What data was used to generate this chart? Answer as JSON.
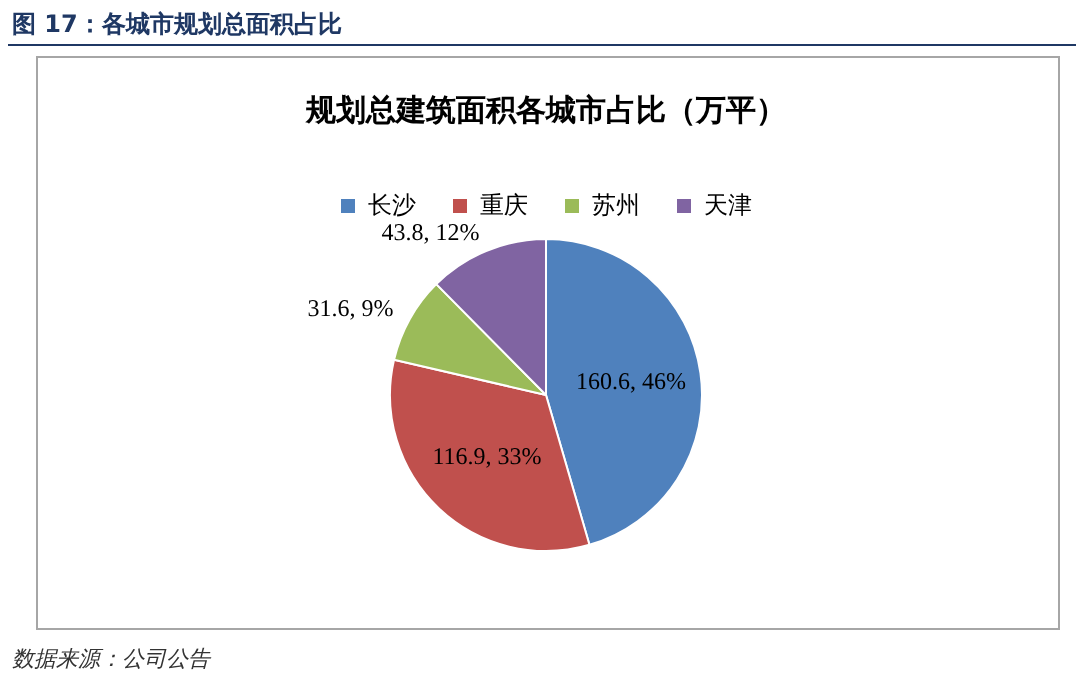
{
  "chart_data": {
    "type": "pie",
    "title": "规划总建筑面积各城市占比（万平）",
    "categories": [
      "长沙",
      "重庆",
      "苏州",
      "天津"
    ],
    "values": [
      160.6,
      116.9,
      31.6,
      43.8
    ],
    "colors": [
      "#4f81bd",
      "#c0504d",
      "#9bbb59",
      "#8064a2"
    ],
    "value_labels": [
      "160.6, 46%",
      "116.9, 33%",
      "31.6, 9%",
      "43.8, 12%"
    ],
    "legend": "top",
    "annotations": [
      "图 17：各城市规划总面积占比",
      "数据来源：公司公告"
    ]
  }
}
